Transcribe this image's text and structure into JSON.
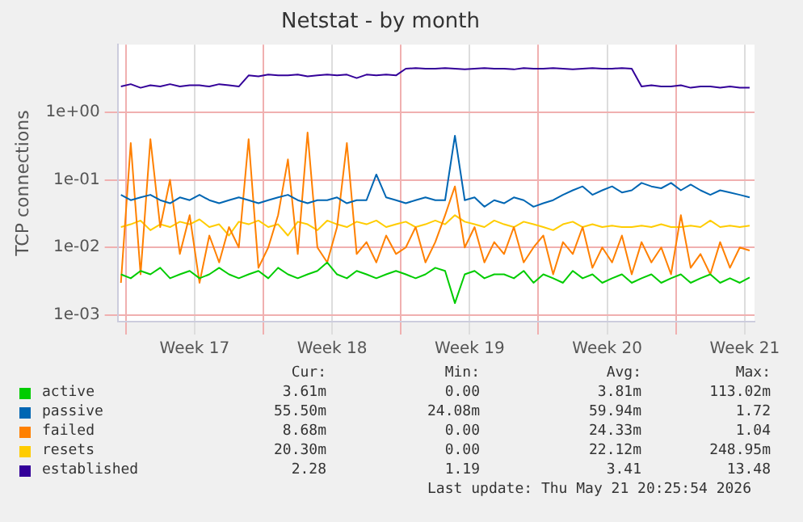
{
  "chart_data": {
    "type": "line",
    "title": "Netstat - by month",
    "ylabel": "TCP connections",
    "log": "y",
    "grid": true,
    "legend": "bottom",
    "marker": "none",
    "x": [
      "2026-04-19T18:00",
      "2026-04-20T06:00",
      "2026-04-20T18:00",
      "2026-04-21T06:00",
      "2026-04-21T18:00",
      "2026-04-22T06:00",
      "2026-04-22T18:00",
      "2026-04-23T06:00",
      "2026-04-23T18:00",
      "2026-04-24T06:00",
      "2026-04-24T18:00",
      "2026-04-25T06:00",
      "2026-04-25T18:00",
      "2026-04-26T06:00",
      "2026-04-26T18:00",
      "2026-04-27T06:00",
      "2026-04-27T18:00",
      "2026-04-28T06:00",
      "2026-04-28T18:00",
      "2026-04-29T06:00",
      "2026-04-29T18:00",
      "2026-04-30T06:00",
      "2026-04-30T18:00",
      "2026-05-01T06:00",
      "2026-05-01T18:00",
      "2026-05-02T06:00",
      "2026-05-02T18:00",
      "2026-05-03T06:00",
      "2026-05-03T18:00",
      "2026-05-04T06:00",
      "2026-05-04T18:00",
      "2026-05-05T06:00",
      "2026-05-05T18:00",
      "2026-05-06T06:00",
      "2026-05-06T18:00",
      "2026-05-07T06:00",
      "2026-05-07T18:00",
      "2026-05-08T06:00",
      "2026-05-08T18:00",
      "2026-05-09T06:00",
      "2026-05-09T18:00",
      "2026-05-10T06:00",
      "2026-05-10T18:00",
      "2026-05-11T06:00",
      "2026-05-11T18:00",
      "2026-05-12T06:00",
      "2026-05-12T18:00",
      "2026-05-13T06:00",
      "2026-05-13T18:00",
      "2026-05-14T06:00",
      "2026-05-14T18:00",
      "2026-05-15T06:00",
      "2026-05-15T18:00",
      "2026-05-16T06:00",
      "2026-05-16T18:00",
      "2026-05-17T06:00",
      "2026-05-17T18:00",
      "2026-05-18T06:00",
      "2026-05-18T18:00",
      "2026-05-19T06:00",
      "2026-05-19T18:00",
      "2026-05-20T06:00",
      "2026-05-20T18:00",
      "2026-05-21T06:00",
      "2026-05-21T18:00"
    ],
    "xlim": [
      "2026-04-19T14:00",
      "2026-05-22T00:00"
    ],
    "xticks": [
      {
        "value": "2026-04-20T00:00",
        "label": null
      },
      {
        "value": "2026-04-23T12:00",
        "label": "Week 17"
      },
      {
        "value": "2026-04-27T00:00",
        "label": null
      },
      {
        "value": "2026-04-30T12:00",
        "label": "Week 18"
      },
      {
        "value": "2026-05-04T00:00",
        "label": null
      },
      {
        "value": "2026-05-07T12:00",
        "label": "Week 19"
      },
      {
        "value": "2026-05-11T00:00",
        "label": null
      },
      {
        "value": "2026-05-14T12:00",
        "label": "Week 20"
      },
      {
        "value": "2026-05-18T00:00",
        "label": null
      },
      {
        "value": "2026-05-21T12:00",
        "label": "Week 21"
      }
    ],
    "ylim": [
      0.0008,
      10
    ],
    "yticks": [
      {
        "value": 0.001,
        "label": "1e-03"
      },
      {
        "value": 0.01,
        "label": "1e-02"
      },
      {
        "value": 0.1,
        "label": "1e-01"
      },
      {
        "value": 1,
        "label": "1e+00"
      }
    ],
    "series": [
      {
        "name": "active",
        "color": "#00cc00",
        "values": [
          0.004,
          0.0035,
          0.0045,
          0.004,
          0.005,
          0.0035,
          0.004,
          0.0045,
          0.0035,
          0.004,
          0.005,
          0.004,
          0.0035,
          0.004,
          0.0045,
          0.0035,
          0.005,
          0.004,
          0.0035,
          0.004,
          0.0045,
          0.006,
          0.004,
          0.0035,
          0.0045,
          0.004,
          0.0035,
          0.004,
          0.0045,
          0.004,
          0.0035,
          0.004,
          0.005,
          0.0045,
          0.0015,
          0.004,
          0.0045,
          0.0035,
          0.004,
          0.004,
          0.0035,
          0.0045,
          0.003,
          0.004,
          0.0035,
          0.003,
          0.0045,
          0.0035,
          0.004,
          0.003,
          0.0035,
          0.004,
          0.003,
          0.0035,
          0.004,
          0.003,
          0.0035,
          0.004,
          0.003,
          0.0035,
          0.004,
          0.003,
          0.0035,
          0.003,
          0.0036
        ]
      },
      {
        "name": "passive",
        "color": "#0066b3",
        "values": [
          0.06,
          0.05,
          0.055,
          0.06,
          0.05,
          0.045,
          0.055,
          0.05,
          0.06,
          0.05,
          0.045,
          0.05,
          0.055,
          0.05,
          0.045,
          0.05,
          0.055,
          0.06,
          0.05,
          0.045,
          0.05,
          0.05,
          0.055,
          0.045,
          0.05,
          0.05,
          0.12,
          0.055,
          0.05,
          0.045,
          0.05,
          0.055,
          0.05,
          0.05,
          0.45,
          0.05,
          0.055,
          0.04,
          0.05,
          0.045,
          0.055,
          0.05,
          0.04,
          0.045,
          0.05,
          0.06,
          0.07,
          0.08,
          0.06,
          0.07,
          0.08,
          0.065,
          0.07,
          0.09,
          0.08,
          0.075,
          0.09,
          0.07,
          0.085,
          0.07,
          0.06,
          0.07,
          0.065,
          0.06,
          0.055
        ]
      },
      {
        "name": "failed",
        "color": "#ff8000",
        "values": [
          0.003,
          0.35,
          0.004,
          0.4,
          0.02,
          0.1,
          0.008,
          0.03,
          0.003,
          0.015,
          0.006,
          0.02,
          0.01,
          0.4,
          0.005,
          0.01,
          0.03,
          0.2,
          0.008,
          0.5,
          0.01,
          0.006,
          0.02,
          0.35,
          0.008,
          0.012,
          0.006,
          0.015,
          0.008,
          0.01,
          0.02,
          0.006,
          0.012,
          0.03,
          0.08,
          0.01,
          0.02,
          0.006,
          0.012,
          0.008,
          0.02,
          0.006,
          0.01,
          0.015,
          0.004,
          0.012,
          0.008,
          0.02,
          0.005,
          0.01,
          0.006,
          0.015,
          0.004,
          0.012,
          0.006,
          0.01,
          0.004,
          0.03,
          0.005,
          0.008,
          0.004,
          0.012,
          0.005,
          0.01,
          0.009
        ]
      },
      {
        "name": "resets",
        "color": "#ffcc00",
        "values": [
          0.02,
          0.022,
          0.025,
          0.018,
          0.022,
          0.02,
          0.024,
          0.022,
          0.026,
          0.02,
          0.022,
          0.015,
          0.024,
          0.022,
          0.025,
          0.02,
          0.022,
          0.015,
          0.024,
          0.022,
          0.018,
          0.025,
          0.022,
          0.02,
          0.024,
          0.022,
          0.025,
          0.02,
          0.022,
          0.024,
          0.02,
          0.022,
          0.025,
          0.022,
          0.03,
          0.024,
          0.022,
          0.02,
          0.025,
          0.022,
          0.02,
          0.024,
          0.022,
          0.02,
          0.018,
          0.022,
          0.024,
          0.02,
          0.022,
          0.02,
          0.021,
          0.02,
          0.02,
          0.021,
          0.02,
          0.022,
          0.02,
          0.02,
          0.021,
          0.02,
          0.025,
          0.02,
          0.021,
          0.02,
          0.021
        ]
      },
      {
        "name": "established",
        "color": "#330099",
        "values": [
          2.4,
          2.6,
          2.3,
          2.5,
          2.4,
          2.6,
          2.4,
          2.5,
          2.5,
          2.4,
          2.6,
          2.5,
          2.4,
          3.5,
          3.4,
          3.6,
          3.5,
          3.5,
          3.6,
          3.4,
          3.5,
          3.6,
          3.5,
          3.6,
          3.2,
          3.6,
          3.5,
          3.6,
          3.5,
          4.4,
          4.5,
          4.4,
          4.4,
          4.5,
          4.4,
          4.3,
          4.4,
          4.5,
          4.4,
          4.4,
          4.3,
          4.5,
          4.4,
          4.4,
          4.5,
          4.4,
          4.3,
          4.4,
          4.5,
          4.4,
          4.4,
          4.5,
          4.4,
          2.4,
          2.5,
          2.4,
          2.4,
          2.5,
          2.3,
          2.4,
          2.4,
          2.3,
          2.4,
          2.3,
          2.3
        ]
      }
    ],
    "annotations": [
      "Cur:",
      "Min:",
      "Avg:",
      "Max:",
      "3.61m",
      "0.00",
      "3.81m",
      "113.02m",
      "55.50m",
      "24.08m",
      "59.94m",
      "1.72",
      "8.68m",
      "0.00",
      "24.33m",
      "1.04",
      "20.30m",
      "0.00",
      "22.12m",
      "248.95m",
      "2.28",
      "1.19",
      "3.41",
      "13.48",
      "Last update: Thu May 21 20:25:54 2026"
    ]
  }
}
